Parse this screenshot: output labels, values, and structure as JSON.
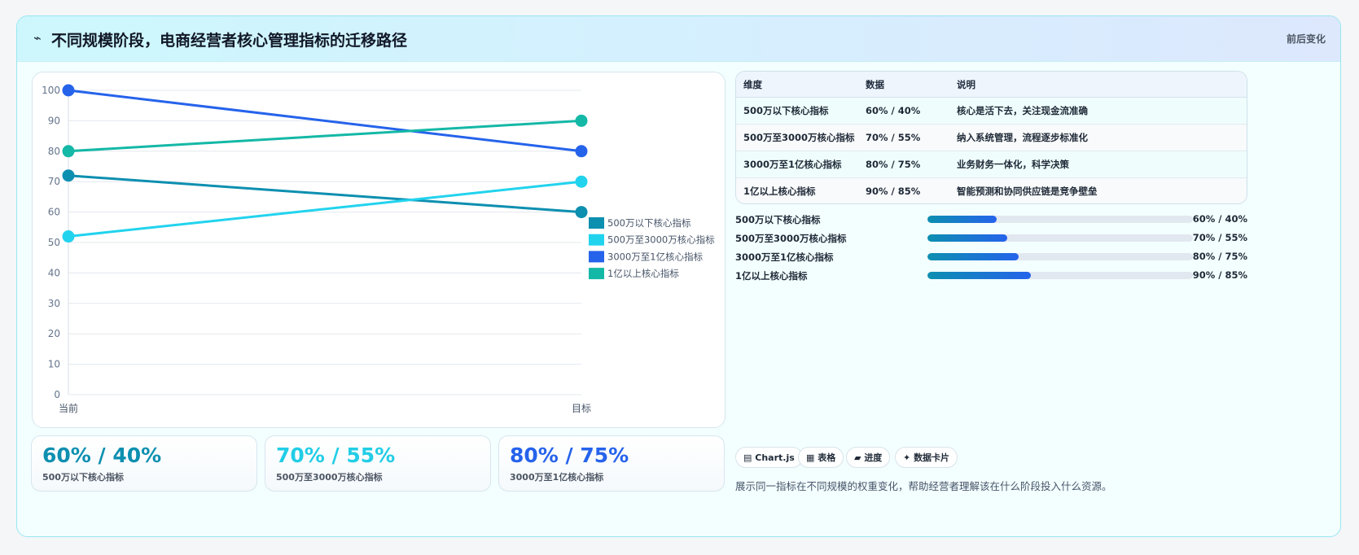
{
  "header": {
    "icon": "lightning-icon",
    "icon_glyph": "⌁",
    "title": "不同规模阶段，电商经营者核心管理指标的迁移路径",
    "right_label": "前后变化"
  },
  "chart_data": {
    "type": "line",
    "title": "",
    "xlabel": "",
    "ylabel": "",
    "x": [
      "当前",
      "目标"
    ],
    "ylim": [
      0,
      100
    ],
    "yticks": [
      0,
      10,
      20,
      30,
      40,
      50,
      60,
      70,
      80,
      90,
      100
    ],
    "grid": true,
    "legend_position": "right",
    "series": [
      {
        "name": "500万以下核心指标",
        "values": [
          72,
          60
        ],
        "color": "#0d8fb0"
      },
      {
        "name": "500万至3000万核心指标",
        "values": [
          52,
          70
        ],
        "color": "#22d3ee"
      },
      {
        "name": "3000万至1亿核心指标",
        "values": [
          100,
          80
        ],
        "color": "#2563eb"
      },
      {
        "name": "1亿以上核心指标",
        "values": [
          80,
          90
        ],
        "color": "#14b8a6"
      }
    ]
  },
  "kpis": [
    {
      "value": "60% / 40%",
      "label": "500万以下核心指标",
      "color": "#0d8fb0"
    },
    {
      "value": "70% / 55%",
      "label": "500万至3000万核心指标",
      "color": "#22cde6"
    },
    {
      "value": "80% / 75%",
      "label": "3000万至1亿核心指标",
      "color": "#2563eb"
    }
  ],
  "table": {
    "headers": [
      "维度",
      "数据",
      "说明"
    ],
    "rows": [
      [
        "500万以下核心指标",
        "60% / 40%",
        "核心是活下去，关注现金流准确"
      ],
      [
        "500万至3000万核心指标",
        "70% / 55%",
        "纳入系统管理，流程逐步标准化"
      ],
      [
        "3000万至1亿核心指标",
        "80% / 75%",
        "业务财务一体化，科学决策"
      ],
      [
        "1亿以上核心指标",
        "90% / 85%",
        "智能预测和协同供应链是竞争壁垒"
      ]
    ]
  },
  "progress": [
    {
      "label": "500万以下核心指标",
      "value": "60% / 40%",
      "fill": 0.26
    },
    {
      "label": "500万至3000万核心指标",
      "value": "70% / 55%",
      "fill": 0.3
    },
    {
      "label": "3000万至1亿核心指标",
      "value": "80% / 75%",
      "fill": 0.345
    },
    {
      "label": "1亿以上核心指标",
      "value": "90% / 85%",
      "fill": 0.39
    }
  ],
  "chips": [
    {
      "icon": "chart-icon",
      "glyph": "▤",
      "label": "Chart.js"
    },
    {
      "icon": "table-icon",
      "glyph": "▦",
      "label": "表格"
    },
    {
      "icon": "progress-icon",
      "glyph": "▰",
      "label": "进度"
    },
    {
      "icon": "sparkle-icon",
      "glyph": "✦",
      "label": "数据卡片"
    }
  ],
  "footnote": "展示同一指标在不同规模的权重变化，帮助经营者理解该在什么阶段投入什么资源。"
}
